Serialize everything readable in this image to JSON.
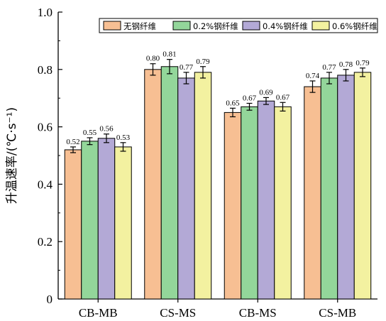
{
  "chart_data": {
    "type": "bar",
    "ylabel": "升温速率/(℃·s⁻¹)",
    "ylim": [
      0,
      1.0
    ],
    "yticks": [
      "0",
      "0.2",
      "0.4",
      "0.6",
      "0.8",
      "1.0"
    ],
    "categories": [
      "CB-MB",
      "CS-MS",
      "CB-MS",
      "CS-MB"
    ],
    "legend_position": "top-right",
    "series": [
      {
        "name": "无钢纤维",
        "color": "#f7bf93",
        "values": [
          0.52,
          0.8,
          0.65,
          0.74
        ],
        "labels": [
          "0.52",
          "0.80",
          "0.65",
          "0.74"
        ],
        "errors": [
          0.01,
          0.02,
          0.015,
          0.02
        ]
      },
      {
        "name": "0.2%钢纤维",
        "color": "#93d69a",
        "values": [
          0.55,
          0.81,
          0.67,
          0.77
        ],
        "labels": [
          "0.55",
          "0.81",
          "0.67",
          "0.77"
        ],
        "errors": [
          0.012,
          0.025,
          0.012,
          0.02
        ]
      },
      {
        "name": "0.4%钢纤维",
        "color": "#b3a9d6",
        "values": [
          0.56,
          0.77,
          0.69,
          0.78
        ],
        "labels": [
          "0.56",
          "0.77",
          "0.69",
          "0.78"
        ],
        "errors": [
          0.015,
          0.02,
          0.012,
          0.02
        ]
      },
      {
        "name": "0.6%钢纤维",
        "color": "#f3f1a0",
        "values": [
          0.53,
          0.79,
          0.67,
          0.79
        ],
        "labels": [
          "0.53",
          "0.79",
          "0.67",
          "0.79"
        ],
        "errors": [
          0.015,
          0.02,
          0.015,
          0.015
        ]
      }
    ]
  }
}
